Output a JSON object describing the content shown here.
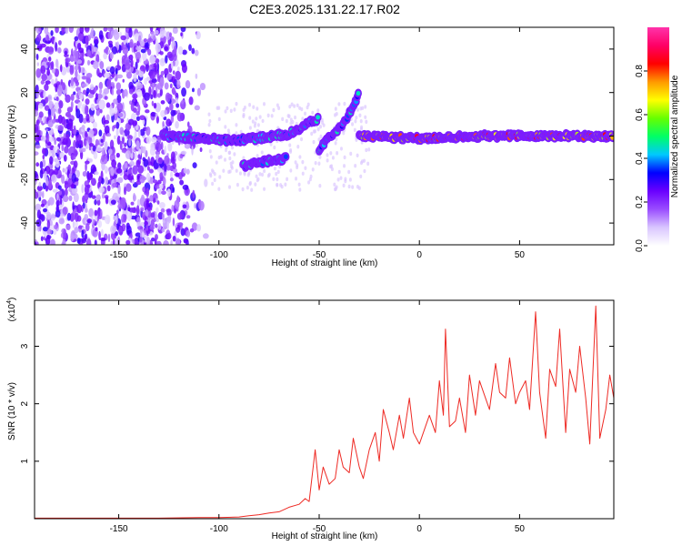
{
  "title": "C2E3.2025.131.22.17.R02",
  "chart_data": [
    {
      "type": "heatmap",
      "xlabel": "Height of straight line (km)",
      "ylabel": "Frequency (Hz)",
      "xlim": [
        -192,
        97
      ],
      "ylim": [
        -50,
        50
      ],
      "xticks": [
        -150,
        -100,
        -50,
        0,
        50
      ],
      "yticks": [
        -40,
        -20,
        0,
        20,
        40
      ],
      "colorbar": {
        "label": "Normalized spectral amplitude",
        "range": [
          0,
          1
        ],
        "ticks": [
          0.0,
          0.2,
          0.4,
          0.6,
          0.8
        ],
        "colormap": [
          "#ffffff",
          "#d9c6ff",
          "#9a4dff",
          "#6a00ff",
          "#0000ff",
          "#00c8ff",
          "#00ff66",
          "#66ff00",
          "#ffff00",
          "#ff9900",
          "#ff0000",
          "#ff0066",
          "#ff33aa"
        ]
      },
      "noise_region": {
        "x_range": [
          -192,
          -105
        ],
        "amplitude": [
          0.05,
          0.3
        ]
      },
      "traces": [
        {
          "points": [
            [
              -128,
              0
            ],
            [
              -110,
              -1
            ],
            [
              -95,
              -2
            ],
            [
              -80,
              -1
            ],
            [
              -65,
              1
            ],
            [
              -55,
              6
            ],
            [
              -50,
              8
            ]
          ],
          "amplitude": 0.45
        },
        {
          "points": [
            [
              -88,
              -14
            ],
            [
              -80,
              -12
            ],
            [
              -72,
              -11
            ],
            [
              -66,
              -10
            ]
          ],
          "amplitude": 0.45
        },
        {
          "points": [
            [
              -50,
              -6
            ],
            [
              -44,
              0
            ],
            [
              -38,
              6
            ],
            [
              -33,
              13
            ],
            [
              -30,
              20
            ]
          ],
          "amplitude": 0.45
        },
        {
          "points": [
            [
              -30,
              0
            ],
            [
              0,
              -1
            ],
            [
              30,
              0
            ],
            [
              60,
              0
            ],
            [
              97,
              0
            ]
          ],
          "amplitude": 0.85
        }
      ],
      "grid": false,
      "legend": "colorbar-right"
    },
    {
      "type": "line",
      "xlabel": "Height of straight line (km)",
      "ylabel": "SNR (10 * v/v)",
      "y_multiplier": "(x10^4)",
      "xlim": [
        -192,
        97
      ],
      "ylim": [
        0,
        3.8
      ],
      "xticks": [
        -150,
        -100,
        -50,
        0,
        50
      ],
      "yticks": [
        1,
        2,
        3
      ],
      "color": "#ee2a24",
      "series": [
        {
          "x": [
            -192,
            -170,
            -150,
            -130,
            -110,
            -100,
            -90,
            -85,
            -80,
            -75,
            -70,
            -65,
            -60,
            -57,
            -55,
            -52,
            -50,
            -48,
            -45,
            -42,
            -40,
            -38,
            -35,
            -33,
            -30,
            -28,
            -25,
            -22,
            -20,
            -18,
            -15,
            -13,
            -10,
            -8,
            -5,
            -3,
            0,
            3,
            5,
            8,
            10,
            12,
            13,
            15,
            18,
            20,
            23,
            25,
            28,
            30,
            33,
            35,
            38,
            40,
            43,
            45,
            48,
            50,
            53,
            55,
            58,
            60,
            63,
            65,
            68,
            70,
            73,
            75,
            78,
            80,
            83,
            85,
            88,
            90,
            93,
            95,
            97
          ],
          "values": [
            0.01,
            0.01,
            0.01,
            0.01,
            0.02,
            0.02,
            0.03,
            0.05,
            0.07,
            0.1,
            0.12,
            0.2,
            0.25,
            0.35,
            0.3,
            1.2,
            0.5,
            0.9,
            0.6,
            0.7,
            1.2,
            0.9,
            0.8,
            1.4,
            0.9,
            0.7,
            1.2,
            1.5,
            1.0,
            1.9,
            1.5,
            1.2,
            1.8,
            1.4,
            2.1,
            1.5,
            1.3,
            1.6,
            1.8,
            1.5,
            2.4,
            1.8,
            3.3,
            1.6,
            1.7,
            2.1,
            1.5,
            2.5,
            1.8,
            2.4,
            2.1,
            1.9,
            2.7,
            2.2,
            2.1,
            2.8,
            2.0,
            2.2,
            2.4,
            1.9,
            3.6,
            2.2,
            1.4,
            2.6,
            2.3,
            3.3,
            1.5,
            2.6,
            2.2,
            3.0,
            2.1,
            1.3,
            3.7,
            1.4,
            1.9,
            2.5,
            2.1
          ]
        }
      ],
      "grid": false,
      "legend": "none"
    }
  ]
}
